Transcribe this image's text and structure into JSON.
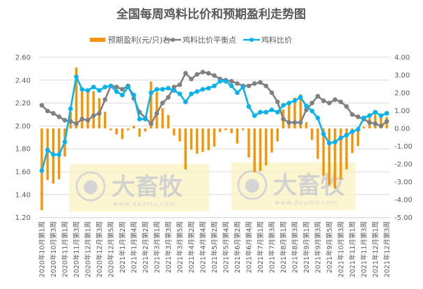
{
  "chart_data": {
    "type": "bar+line",
    "title": "全国每周鸡料比价和预期盈利走势图",
    "legend_position": "top",
    "grid": true,
    "colors": {
      "bars": "#F79406",
      "balance": "#808080",
      "ratio": "#0AB2EA"
    },
    "left_axis": {
      "ylim": [
        1.2,
        2.6
      ],
      "ticks": [
        "1.20",
        "1.40",
        "1.60",
        "1.80",
        "2.00",
        "2.20",
        "2.40",
        "2.60"
      ]
    },
    "right_axis": {
      "ylim": [
        -5,
        4
      ],
      "ticks": [
        "-5.00",
        "-4.00",
        "-3.00",
        "-2.00",
        "-1.00",
        "0.00",
        "1.00",
        "2.00",
        "3.00",
        "4.00"
      ]
    },
    "x_tick_labels": [
      "2020年10月第1周",
      "2020年10月第3周",
      "2020年11月第1周",
      "2020年11月第3周",
      "2020年12月第1周",
      "2020年12月第3周",
      "2020年12月第5周",
      "2021年1月第2周",
      "2021年1月第4周",
      "2021年2月第2周",
      "2021年3月第1周",
      "2021年3月第3周",
      "2021年3月第5周",
      "2021年4月第2周",
      "2021年4月第4周",
      "2021年5月第2周",
      "2021年5月第4周",
      "2021年6月第2周",
      "2021年6月第4周",
      "2021年7月第1周",
      "2021年7月第3周",
      "2021年8月第1周",
      "2021年8月第3周",
      "2021年9月第1周",
      "2021年9月第3周",
      "2021年9月第5周",
      "2021年10月第3周",
      "2021年11月第1周",
      "2021年11月第3周",
      "2021年12月第1周",
      "2021年12月第3周"
    ],
    "series": [
      {
        "name": "预期盈利(元/只)右",
        "type": "bar",
        "axis": "right",
        "values": [
          -4.59,
          -2.89,
          -3.09,
          -2.85,
          -1.58,
          0.94,
          3.42,
          2.2,
          2.05,
          2.1,
          1.7,
          0.94,
          -0.1,
          -0.33,
          -0.59,
          -0.1,
          0.15,
          -0.46,
          -0.17,
          2.64,
          2.05,
          1.14,
          0.75,
          -0.39,
          -0.73,
          -2.3,
          -1.19,
          -1.41,
          -1.32,
          -1.22,
          -1.02,
          -0.2,
          -0.1,
          -0.26,
          -0.85,
          -0.1,
          -1.63,
          -2.46,
          -2.39,
          -2.07,
          -1.35,
          -0.73,
          1.07,
          1.33,
          1.73,
          1.92,
          0.35,
          -0.65,
          -1.71,
          -2.65,
          -3.18,
          -3.37,
          -2.85,
          -2.3,
          -1.38,
          -0.99,
          0.1,
          0.58,
          0.78,
          0.62,
          0.65
        ]
      },
      {
        "name": "鸡料比价平衡点",
        "type": "line",
        "axis": "left",
        "values": [
          2.18,
          2.13,
          2.11,
          2.08,
          2.05,
          2.04,
          2.02,
          2.06,
          2.05,
          2.09,
          2.11,
          2.23,
          2.35,
          2.34,
          2.32,
          2.35,
          2.24,
          2.12,
          2.07,
          2.02,
          2.11,
          2.2,
          2.25,
          2.34,
          2.36,
          2.46,
          2.41,
          2.45,
          2.47,
          2.46,
          2.44,
          2.41,
          2.4,
          2.39,
          2.37,
          2.35,
          2.35,
          2.37,
          2.38,
          2.35,
          2.29,
          2.21,
          2.06,
          2.03,
          2.03,
          2.03,
          2.14,
          2.2,
          2.26,
          2.22,
          2.2,
          2.23,
          2.21,
          2.17,
          2.1,
          2.08,
          2.06,
          2.03,
          2.02,
          2.0,
          2.04
        ]
      },
      {
        "name": "鸡料比价",
        "type": "line",
        "axis": "left",
        "values": [
          1.61,
          1.79,
          1.75,
          1.75,
          1.86,
          2.15,
          2.43,
          2.32,
          2.31,
          2.34,
          2.31,
          2.34,
          2.35,
          2.3,
          2.27,
          2.34,
          2.27,
          2.06,
          2.06,
          2.29,
          2.32,
          2.32,
          2.33,
          2.31,
          2.28,
          2.21,
          2.28,
          2.3,
          2.32,
          2.33,
          2.35,
          2.39,
          2.39,
          2.35,
          2.29,
          2.34,
          2.17,
          2.09,
          2.12,
          2.12,
          2.14,
          2.12,
          2.18,
          2.2,
          2.22,
          2.25,
          2.175,
          2.13,
          2.07,
          1.93,
          1.85,
          1.86,
          1.895,
          1.92,
          1.95,
          1.97,
          2.07,
          2.09,
          2.12,
          2.09,
          2.11
        ]
      }
    ]
  },
  "watermark": {
    "brand": "大畜牧",
    "url": "www.dxumu.com"
  }
}
